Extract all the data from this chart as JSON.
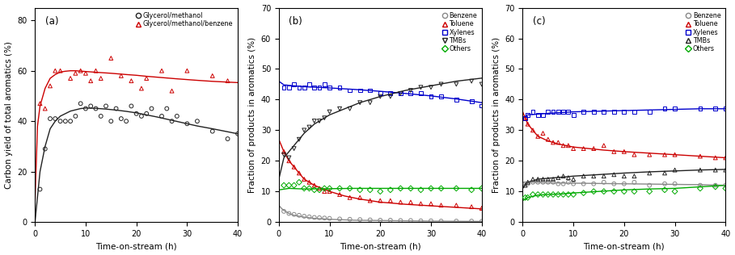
{
  "panel_a": {
    "title": "(a)",
    "xlabel": "Time-on-stream (h)",
    "ylabel": "Carbon yield of total aromatics (%)",
    "ylim": [
      0,
      85
    ],
    "xlim": [
      0,
      40
    ],
    "yticks": [
      0,
      20,
      40,
      60,
      80
    ],
    "xticks": [
      0,
      10,
      20,
      30,
      40
    ],
    "series": [
      {
        "label": "Glycerol/methanol",
        "color": "#222222",
        "marker": "o",
        "scatter_x": [
          1,
          2,
          3,
          4,
          5,
          6,
          7,
          8,
          9,
          10,
          11,
          12,
          13,
          14,
          15,
          16,
          17,
          18,
          19,
          20,
          21,
          22,
          23,
          25,
          26,
          27,
          28,
          30,
          32,
          35,
          38,
          40
        ],
        "scatter_y": [
          13,
          29,
          41,
          41,
          40,
          40,
          40,
          42,
          47,
          45,
          46,
          45,
          42,
          46,
          40,
          45,
          41,
          40,
          46,
          43,
          42,
          43,
          45,
          42,
          45,
          40,
          42,
          39,
          40,
          36,
          33,
          35
        ],
        "curve_x": [
          0.01,
          1,
          2,
          3,
          4,
          5,
          6,
          7,
          8,
          9,
          10,
          12,
          14,
          16,
          18,
          20,
          22,
          24,
          26,
          28,
          30,
          32,
          35,
          38,
          40
        ],
        "curve_y": [
          0,
          20,
          30,
          37,
          40,
          42,
          43,
          44,
          44.5,
          45,
          45.2,
          45.1,
          44.8,
          44.4,
          43.9,
          43.3,
          42.5,
          41.7,
          40.8,
          39.9,
          39.0,
          38.1,
          37.0,
          35.8,
          35.0
        ]
      },
      {
        "label": "Glycerol/methanol/benzene",
        "color": "#cc0000",
        "marker": "^",
        "scatter_x": [
          1,
          2,
          3,
          4,
          5,
          7,
          8,
          9,
          10,
          11,
          12,
          13,
          15,
          17,
          19,
          21,
          22,
          25,
          27,
          30,
          35,
          38
        ],
        "scatter_y": [
          47,
          45,
          54,
          60,
          60,
          57,
          59,
          60,
          59,
          56,
          60,
          57,
          65,
          58,
          56,
          53,
          57,
          60,
          52,
          60,
          58,
          56
        ],
        "curve_x": [
          0.01,
          0.5,
          1,
          2,
          3,
          4,
          5,
          6,
          7,
          8,
          10,
          12,
          15,
          18,
          20,
          22,
          25,
          28,
          30,
          32,
          35,
          38,
          40
        ],
        "curve_y": [
          8,
          38,
          46,
          53,
          57,
          58.5,
          59.5,
          59.8,
          60.0,
          60.0,
          59.7,
          59.4,
          59.0,
          58.5,
          58.2,
          57.8,
          57.3,
          56.8,
          56.5,
          56.2,
          55.8,
          55.5,
          55.3
        ]
      }
    ]
  },
  "panel_b": {
    "title": "(b)",
    "xlabel": "Time-on-stream (h)",
    "ylabel": "Fraction of products in aromatics (%)",
    "ylim": [
      0,
      70
    ],
    "xlim": [
      0,
      40
    ],
    "yticks": [
      0,
      10,
      20,
      30,
      40,
      50,
      60,
      70
    ],
    "xticks": [
      0,
      10,
      20,
      30,
      40
    ],
    "series": [
      {
        "label": "Benzene",
        "color": "#888888",
        "marker": "o",
        "scatter_x": [
          1,
          2,
          3,
          4,
          5,
          6,
          7,
          8,
          9,
          10,
          12,
          14,
          16,
          18,
          20,
          22,
          24,
          26,
          28,
          30,
          32,
          35,
          38,
          40
        ],
        "scatter_y": [
          3.5,
          2.8,
          2.5,
          2.2,
          1.9,
          1.7,
          1.5,
          1.4,
          1.3,
          1.2,
          1.0,
          0.9,
          0.8,
          0.7,
          0.6,
          0.6,
          0.5,
          0.5,
          0.4,
          0.4,
          0.3,
          0.3,
          0.3,
          0.2
        ],
        "curve_x": [
          0,
          0.5,
          1,
          2,
          3,
          5,
          7,
          10,
          15,
          20,
          25,
          30,
          35,
          40
        ],
        "curve_y": [
          5.5,
          4.5,
          3.8,
          2.8,
          2.2,
          1.6,
          1.2,
          0.9,
          0.6,
          0.5,
          0.4,
          0.3,
          0.25,
          0.2
        ]
      },
      {
        "label": "Toluene",
        "color": "#cc0000",
        "marker": "^",
        "scatter_x": [
          1,
          2,
          3,
          4,
          5,
          6,
          7,
          8,
          9,
          10,
          12,
          14,
          16,
          18,
          20,
          22,
          24,
          26,
          28,
          30,
          32,
          35,
          38,
          40
        ],
        "scatter_y": [
          23,
          20,
          18,
          16,
          14,
          13,
          12,
          11,
          10,
          10,
          9,
          8,
          8,
          7,
          7,
          7,
          6.5,
          6.5,
          6,
          6,
          5.5,
          5.5,
          5,
          4.5
        ],
        "curve_x": [
          0,
          0.5,
          1,
          2,
          3,
          5,
          7,
          10,
          13,
          16,
          20,
          25,
          30,
          35,
          40
        ],
        "curve_y": [
          27,
          25,
          23,
          20,
          18,
          14,
          12,
          10,
          8.5,
          7.5,
          6.5,
          5.8,
          5.3,
          4.8,
          4.3
        ]
      },
      {
        "label": "Xylenes",
        "color": "#0000cc",
        "marker": "s",
        "scatter_x": [
          1,
          2,
          3,
          4,
          5,
          6,
          7,
          8,
          9,
          10,
          12,
          14,
          16,
          18,
          20,
          22,
          24,
          26,
          28,
          30,
          32,
          35,
          38,
          40
        ],
        "scatter_y": [
          44,
          44,
          45,
          44,
          44,
          45,
          44,
          44,
          45,
          44,
          44,
          43,
          43,
          43,
          42,
          42,
          42,
          42,
          42,
          41,
          41,
          40,
          39.5,
          38
        ],
        "curve_x": [
          0,
          1,
          5,
          10,
          15,
          20,
          25,
          30,
          35,
          40
        ],
        "curve_y": [
          46,
          44.8,
          44.2,
          43.8,
          43.3,
          42.7,
          42.0,
          41.2,
          40.2,
          39.0
        ]
      },
      {
        "label": "TMBs",
        "color": "#222222",
        "marker": "v",
        "scatter_x": [
          1,
          2,
          3,
          4,
          5,
          6,
          7,
          8,
          9,
          10,
          12,
          14,
          16,
          18,
          20,
          22,
          24,
          26,
          28,
          30,
          32,
          35,
          38,
          40
        ],
        "scatter_y": [
          22,
          21,
          24,
          27,
          30,
          31,
          33,
          33,
          34,
          36,
          37,
          37,
          39,
          39,
          41,
          41,
          42,
          43,
          44,
          44,
          45,
          45,
          46,
          45
        ],
        "curve_x": [
          0,
          1,
          2,
          3,
          5,
          7,
          10,
          13,
          16,
          20,
          25,
          30,
          35,
          40
        ],
        "curve_y": [
          14,
          21,
          23,
          25,
          29,
          32,
          35,
          37,
          39,
          41,
          43,
          44.5,
          46,
          47
        ]
      },
      {
        "label": "Others",
        "color": "#00aa00",
        "marker": "D",
        "scatter_x": [
          1,
          2,
          3,
          4,
          5,
          6,
          7,
          8,
          9,
          10,
          12,
          14,
          16,
          18,
          20,
          22,
          24,
          26,
          28,
          30,
          32,
          35,
          38,
          40
        ],
        "scatter_y": [
          12,
          12,
          12,
          13,
          11,
          11,
          10.5,
          10.5,
          11,
          11,
          11,
          11,
          10.5,
          10.5,
          10,
          10.5,
          11,
          11,
          10.5,
          11,
          11,
          11,
          10.5,
          11
        ],
        "curve_x": [
          0,
          2,
          5,
          10,
          15,
          20,
          25,
          30,
          35,
          40
        ],
        "curve_y": [
          10.5,
          11,
          10.8,
          10.9,
          11,
          11,
          11,
          11,
          11,
          11
        ]
      }
    ]
  },
  "panel_c": {
    "title": "(c)",
    "xlabel": "Time-on-stream (h)",
    "ylabel": "Fraction of products in aromatics (%)",
    "ylim": [
      0,
      70
    ],
    "xlim": [
      0,
      40
    ],
    "yticks": [
      0,
      10,
      20,
      30,
      40,
      50,
      60,
      70
    ],
    "xticks": [
      0,
      10,
      20,
      30,
      40
    ],
    "series": [
      {
        "label": "Benzene",
        "color": "#888888",
        "marker": "o",
        "scatter_x": [
          0.5,
          1,
          2,
          3,
          4,
          5,
          6,
          7,
          8,
          9,
          10,
          12,
          14,
          16,
          18,
          20,
          22,
          25,
          28,
          30,
          35,
          38,
          40
        ],
        "scatter_y": [
          12.5,
          12.5,
          13,
          13,
          13,
          13,
          13,
          12.5,
          12.5,
          13,
          12.5,
          12.5,
          12.5,
          13,
          12.5,
          12.5,
          13,
          12,
          12.5,
          12.5,
          12,
          12,
          12
        ],
        "curve_x": [
          0,
          1,
          5,
          10,
          15,
          20,
          25,
          30,
          35,
          40
        ],
        "curve_y": [
          13,
          13,
          12.8,
          12.7,
          12.6,
          12.5,
          12.4,
          12.3,
          12.2,
          12.0
        ]
      },
      {
        "label": "Toluene",
        "color": "#cc0000",
        "marker": "^",
        "scatter_x": [
          0.5,
          1,
          2,
          3,
          4,
          5,
          6,
          7,
          8,
          9,
          10,
          12,
          14,
          16,
          18,
          20,
          22,
          25,
          28,
          30,
          35,
          38,
          40
        ],
        "scatter_y": [
          34,
          32,
          30,
          28,
          29,
          27,
          26,
          26,
          25,
          25,
          24,
          24,
          24,
          25,
          23,
          23,
          22,
          22,
          22,
          22,
          21.5,
          21,
          21
        ],
        "curve_x": [
          0,
          0.5,
          1,
          2,
          3,
          5,
          7,
          10,
          13,
          16,
          20,
          25,
          30,
          35,
          40
        ],
        "curve_y": [
          36,
          34,
          32,
          30,
          28,
          26.5,
          25.5,
          24.5,
          24,
          23.5,
          23,
          22.5,
          22,
          21.5,
          21
        ]
      },
      {
        "label": "Xylenes",
        "color": "#0000cc",
        "marker": "s",
        "scatter_x": [
          0.5,
          1,
          2,
          3,
          4,
          5,
          6,
          7,
          8,
          9,
          10,
          12,
          14,
          16,
          18,
          20,
          22,
          25,
          28,
          30,
          35,
          38,
          40
        ],
        "scatter_y": [
          34,
          35,
          36,
          35,
          35,
          36,
          36,
          36,
          36,
          36,
          35,
          36,
          36,
          36,
          36,
          36,
          36,
          36,
          37,
          37,
          37,
          37,
          37
        ],
        "curve_x": [
          0,
          1,
          5,
          10,
          15,
          20,
          25,
          30,
          35,
          40
        ],
        "curve_y": [
          34,
          35,
          35.5,
          36,
          36.2,
          36.4,
          36.6,
          36.8,
          37,
          37
        ]
      },
      {
        "label": "TMBs",
        "color": "#222222",
        "marker": "^",
        "scatter_x": [
          0.5,
          1,
          2,
          3,
          4,
          5,
          6,
          7,
          8,
          9,
          10,
          12,
          14,
          16,
          18,
          20,
          22,
          25,
          28,
          30,
          35,
          38,
          40
        ],
        "scatter_y": [
          12,
          13,
          14,
          14,
          14,
          14,
          14,
          14.5,
          15,
          14.5,
          14,
          15,
          15,
          15,
          15.5,
          15,
          15,
          16,
          16,
          17,
          17,
          17,
          17
        ],
        "curve_x": [
          0,
          1,
          2,
          3,
          5,
          8,
          10,
          15,
          20,
          25,
          30,
          35,
          40
        ],
        "curve_y": [
          11,
          13,
          13.5,
          14,
          14.3,
          14.7,
          15.0,
          15.5,
          16.0,
          16.4,
          16.7,
          17.0,
          17.2
        ]
      },
      {
        "label": "Others",
        "color": "#00aa00",
        "marker": "D",
        "scatter_x": [
          0.5,
          1,
          2,
          3,
          4,
          5,
          6,
          7,
          8,
          9,
          10,
          12,
          14,
          16,
          18,
          20,
          22,
          25,
          28,
          30,
          35,
          38,
          40
        ],
        "scatter_y": [
          8,
          8,
          9,
          9,
          9,
          9,
          9,
          9,
          9,
          9,
          9,
          9.5,
          10,
          10,
          10,
          10,
          10,
          10,
          10.5,
          10,
          11,
          11.5,
          11
        ],
        "curve_x": [
          0,
          1,
          3,
          5,
          8,
          10,
          15,
          20,
          25,
          30,
          35,
          40
        ],
        "curve_y": [
          7,
          8,
          8.8,
          9,
          9.2,
          9.5,
          10,
          10.5,
          10.8,
          11,
          11.5,
          12
        ]
      }
    ]
  }
}
